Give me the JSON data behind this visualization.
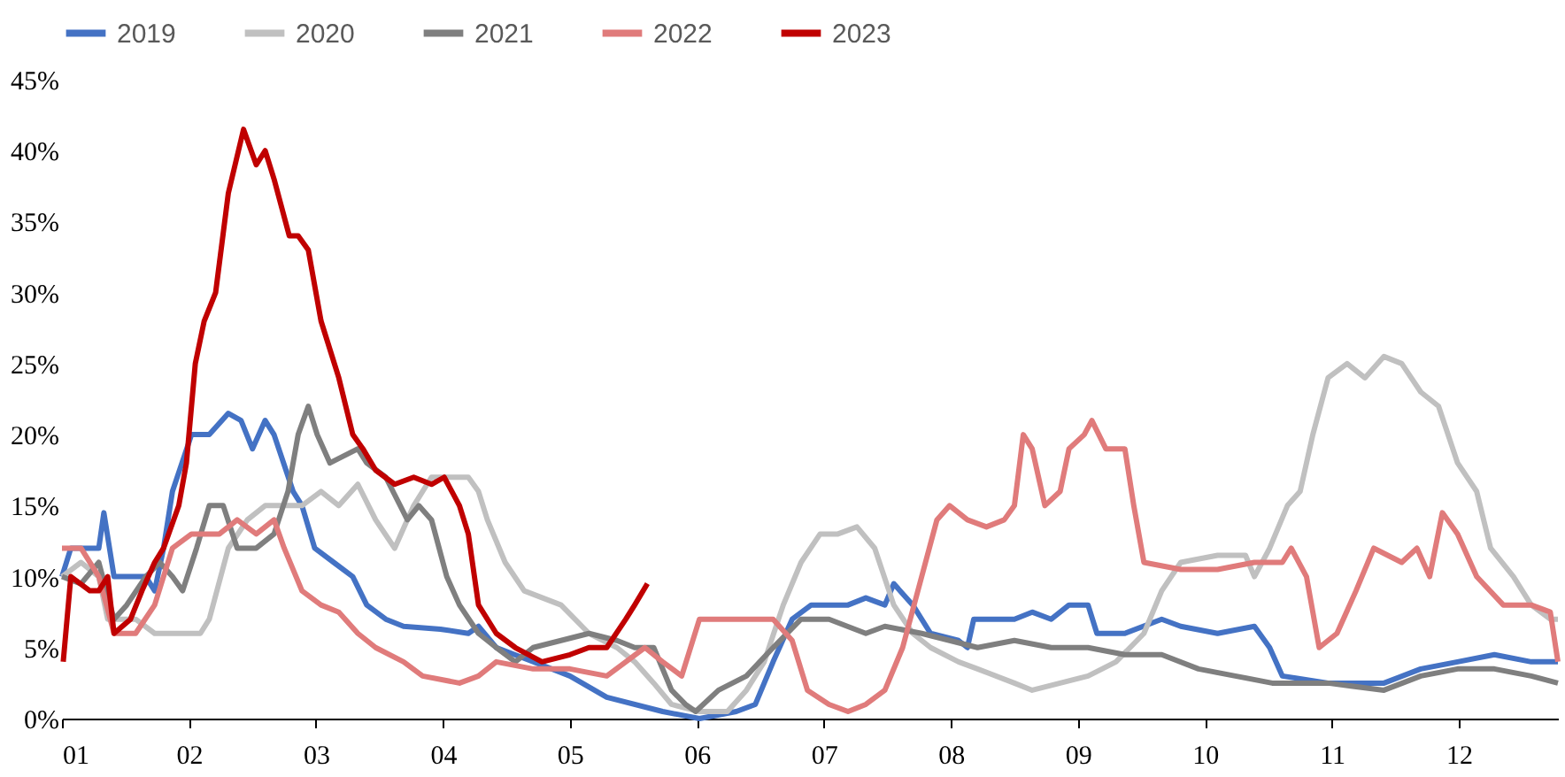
{
  "chart_data": {
    "type": "line",
    "legend": "top",
    "grid": false,
    "line_style": "solid",
    "marker": "none",
    "xlim": [
      1,
      12.78
    ],
    "xticks": [
      {
        "value": 1,
        "label": "01"
      },
      {
        "value": 2,
        "label": "02"
      },
      {
        "value": 3,
        "label": "03"
      },
      {
        "value": 4,
        "label": "04"
      },
      {
        "value": 5,
        "label": "05"
      },
      {
        "value": 6,
        "label": "06"
      },
      {
        "value": 7,
        "label": "07"
      },
      {
        "value": 8,
        "label": "08"
      },
      {
        "value": 9,
        "label": "09"
      },
      {
        "value": 10,
        "label": "10"
      },
      {
        "value": 11,
        "label": "11"
      },
      {
        "value": 12,
        "label": "12"
      }
    ],
    "ylim": [
      0,
      45
    ],
    "yticks": [
      {
        "value": 0,
        "label": "0%"
      },
      {
        "value": 5,
        "label": "5%"
      },
      {
        "value": 10,
        "label": "10%"
      },
      {
        "value": 15,
        "label": "15%"
      },
      {
        "value": 20,
        "label": "20%"
      },
      {
        "value": 25,
        "label": "25%"
      },
      {
        "value": 30,
        "label": "30%"
      },
      {
        "value": 35,
        "label": "35%"
      },
      {
        "value": 40,
        "label": "40%"
      },
      {
        "value": 45,
        "label": "45%"
      }
    ],
    "series": [
      {
        "name": "2019",
        "color": "#4472c4",
        "x": [
          1.0,
          1.07,
          1.29,
          1.33,
          1.41,
          1.66,
          1.73,
          1.8,
          1.87,
          2.02,
          2.16,
          2.31,
          2.41,
          2.5,
          2.6,
          2.67,
          2.82,
          2.89,
          2.99,
          3.14,
          3.29,
          3.4,
          3.55,
          3.69,
          3.98,
          4.2,
          4.28,
          4.42,
          4.71,
          5.0,
          5.29,
          5.73,
          6.02,
          6.31,
          6.46,
          6.6,
          6.75,
          6.9,
          7.19,
          7.33,
          7.48,
          7.55,
          7.7,
          7.84,
          8.06,
          8.13,
          8.18,
          8.5,
          8.64,
          8.79,
          8.93,
          9.08,
          9.15,
          9.37,
          9.66,
          9.81,
          10.1,
          10.39,
          10.51,
          10.61,
          10.97,
          11.41,
          11.7,
          11.99,
          12.28,
          12.57,
          12.78
        ],
        "values": [
          10,
          12,
          12,
          14.5,
          10,
          10,
          9,
          12,
          16,
          20,
          20,
          21.5,
          21,
          19,
          21,
          20,
          16,
          15,
          12,
          11,
          10,
          8,
          7,
          6.5,
          6.3,
          6,
          6.5,
          5,
          4,
          3,
          1.5,
          0.5,
          0,
          0.5,
          1,
          4,
          7,
          8,
          8,
          8.5,
          8,
          9.5,
          8,
          6,
          5.5,
          5,
          7,
          7,
          7.5,
          7,
          8,
          8,
          6,
          6,
          7,
          6.5,
          6,
          6.5,
          5,
          3,
          2.5,
          2.5,
          3.5,
          4,
          4.5,
          4,
          4
        ]
      },
      {
        "name": "2020",
        "color": "#c0c0c0",
        "x": [
          1.0,
          1.15,
          1.29,
          1.36,
          1.58,
          1.73,
          2.02,
          2.09,
          2.16,
          2.31,
          2.46,
          2.6,
          2.75,
          2.89,
          3.04,
          3.18,
          3.33,
          3.47,
          3.62,
          3.77,
          3.91,
          4.06,
          4.2,
          4.28,
          4.35,
          4.49,
          4.64,
          4.93,
          5.15,
          5.37,
          5.51,
          5.66,
          5.8,
          6.02,
          6.24,
          6.39,
          6.53,
          6.68,
          6.82,
          6.97,
          7.11,
          7.26,
          7.4,
          7.55,
          7.7,
          7.84,
          8.06,
          8.21,
          8.5,
          8.64,
          8.86,
          9.08,
          9.3,
          9.52,
          9.66,
          9.81,
          10.1,
          10.32,
          10.39,
          10.51,
          10.65,
          10.75,
          10.85,
          10.97,
          11.12,
          11.26,
          11.41,
          11.55,
          11.7,
          11.84,
          11.99,
          12.14,
          12.25,
          12.43,
          12.57,
          12.72,
          12.78
        ],
        "values": [
          10,
          11,
          10,
          7,
          7,
          6,
          6,
          6,
          7,
          12,
          14,
          15,
          15,
          15,
          16,
          15,
          16.5,
          14,
          12,
          15,
          17,
          17,
          17,
          16,
          14,
          11,
          9,
          8,
          6,
          5,
          4,
          2.5,
          1,
          0.5,
          0.5,
          2,
          4,
          8,
          11,
          13,
          13,
          13.5,
          12,
          8,
          6,
          5,
          4,
          3.5,
          2.5,
          2,
          2.5,
          3,
          4,
          6,
          9,
          11,
          11.5,
          11.5,
          10,
          12,
          15,
          16,
          20,
          24,
          25,
          24,
          25.5,
          25,
          23,
          22,
          18,
          16,
          12,
          10,
          8,
          7,
          7
        ]
      },
      {
        "name": "2021",
        "color": "#7f7f7f",
        "x": [
          1.0,
          1.15,
          1.29,
          1.41,
          1.51,
          1.66,
          1.77,
          1.87,
          1.95,
          2.06,
          2.16,
          2.27,
          2.38,
          2.53,
          2.67,
          2.78,
          2.86,
          2.94,
          3.01,
          3.11,
          3.33,
          3.4,
          3.55,
          3.72,
          3.81,
          3.91,
          4.03,
          4.13,
          4.28,
          4.42,
          4.57,
          4.71,
          4.93,
          5.15,
          5.37,
          5.51,
          5.66,
          5.8,
          5.91,
          5.99,
          6.17,
          6.39,
          6.6,
          6.82,
          7.04,
          7.33,
          7.48,
          7.77,
          7.99,
          8.21,
          8.5,
          8.79,
          9.08,
          9.37,
          9.66,
          9.95,
          10.24,
          10.53,
          10.97,
          11.41,
          11.7,
          11.99,
          12.28,
          12.57,
          12.78
        ],
        "values": [
          10,
          9.5,
          11,
          7,
          8,
          10,
          11,
          10,
          9,
          12,
          15,
          15,
          12,
          12,
          13,
          16,
          20,
          22,
          20,
          18,
          19,
          18,
          17,
          14,
          15,
          14,
          10,
          8,
          6,
          5,
          4,
          5,
          5.5,
          6,
          5.5,
          5,
          5,
          2,
          1,
          0.5,
          2,
          3,
          5,
          7,
          7,
          6,
          6.5,
          6,
          5.5,
          5,
          5.5,
          5,
          5,
          4.5,
          4.5,
          3.5,
          3,
          2.5,
          2.5,
          2,
          3,
          3.5,
          3.5,
          3,
          2.5
        ]
      },
      {
        "name": "2022",
        "color": "#e07b7b",
        "x": [
          1.0,
          1.15,
          1.29,
          1.41,
          1.58,
          1.73,
          1.87,
          2.02,
          2.24,
          2.38,
          2.53,
          2.67,
          2.75,
          2.89,
          3.04,
          3.18,
          3.33,
          3.47,
          3.69,
          3.84,
          4.13,
          4.28,
          4.42,
          4.71,
          5.0,
          5.29,
          5.44,
          5.59,
          5.73,
          5.88,
          6.02,
          6.31,
          6.6,
          6.75,
          6.87,
          7.04,
          7.19,
          7.33,
          7.48,
          7.62,
          7.77,
          7.89,
          7.99,
          8.13,
          8.28,
          8.42,
          8.5,
          8.57,
          8.64,
          8.74,
          8.86,
          8.93,
          9.05,
          9.11,
          9.22,
          9.37,
          9.44,
          9.52,
          9.81,
          10.1,
          10.39,
          10.61,
          10.68,
          10.8,
          10.9,
          11.04,
          11.19,
          11.33,
          11.55,
          11.67,
          11.77,
          11.87,
          11.99,
          12.14,
          12.35,
          12.57,
          12.72,
          12.78
        ],
        "values": [
          12,
          12,
          10,
          6,
          6,
          8,
          12,
          13,
          13,
          14,
          13,
          14,
          12,
          9,
          8,
          7.5,
          6,
          5,
          4,
          3,
          2.5,
          3,
          4,
          3.5,
          3.5,
          3,
          4,
          5,
          4,
          3,
          7,
          7,
          7,
          5.5,
          2,
          1,
          0.5,
          1,
          2,
          5,
          10,
          14,
          15,
          14,
          13.5,
          14,
          15,
          20,
          19,
          15,
          16,
          19,
          20,
          21,
          19,
          19,
          15,
          11,
          10.5,
          10.5,
          11,
          11,
          12,
          10,
          5,
          6,
          9,
          12,
          11,
          12,
          10,
          14.5,
          13,
          10,
          8,
          8,
          7.5,
          4
        ]
      },
      {
        "name": "2023",
        "color": "#c00000",
        "x": [
          1.01,
          1.07,
          1.22,
          1.29,
          1.36,
          1.41,
          1.54,
          1.63,
          1.73,
          1.8,
          1.92,
          1.98,
          2.05,
          2.12,
          2.21,
          2.31,
          2.43,
          2.53,
          2.6,
          2.67,
          2.79,
          2.86,
          2.94,
          3.04,
          3.18,
          3.29,
          3.37,
          3.47,
          3.62,
          3.77,
          3.91,
          4.01,
          4.13,
          4.2,
          4.28,
          4.42,
          4.57,
          4.78,
          5.0,
          5.15,
          5.29,
          5.44,
          5.51,
          5.61
        ],
        "values": [
          4,
          10,
          9,
          9,
          10,
          6,
          7,
          9,
          11,
          12,
          15,
          18,
          25,
          28,
          30,
          37,
          41.5,
          39,
          40,
          38,
          34,
          34,
          33,
          28,
          24,
          20,
          19,
          17.5,
          16.5,
          17,
          16.5,
          17,
          15,
          13,
          8,
          6,
          5,
          4,
          4.5,
          5,
          5,
          7,
          8,
          9.5
        ]
      }
    ]
  }
}
